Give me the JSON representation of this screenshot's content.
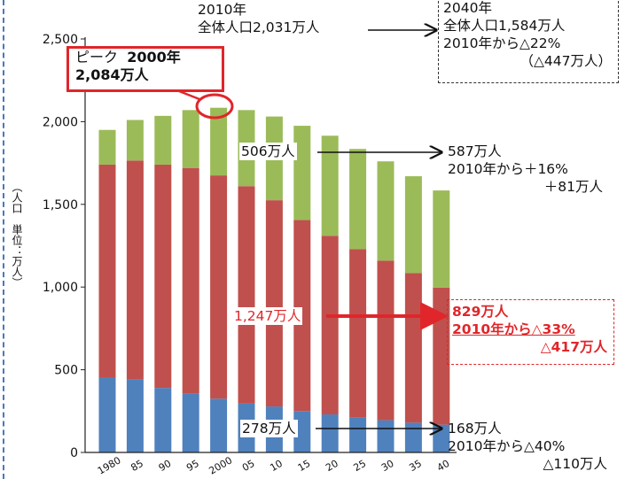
{
  "chart_data": {
    "type": "bar",
    "stacked": true,
    "categories": [
      "1980",
      "85",
      "90",
      "95",
      "2000",
      "05",
      "10",
      "15",
      "20",
      "25",
      "30",
      "35",
      "40"
    ],
    "series": [
      {
        "values": [
          455,
          440,
          390,
          355,
          325,
          295,
          278,
          250,
          230,
          210,
          195,
          180,
          168
        ],
        "color": "#4f81bd"
      },
      {
        "values": [
          1285,
          1325,
          1350,
          1365,
          1350,
          1315,
          1247,
          1155,
          1080,
          1020,
          965,
          905,
          829
        ],
        "color": "#c0504d"
      },
      {
        "values": [
          210,
          245,
          295,
          350,
          409,
          460,
          506,
          570,
          605,
          605,
          600,
          585,
          587
        ],
        "color": "#9bbb59"
      }
    ],
    "ylim": [
      0,
      2500
    ],
    "yticks": [
      "0",
      "500",
      "1,000",
      "1,500",
      "2,000",
      "2,500"
    ],
    "ylabel": "（人口　単位：万人）",
    "grid": false,
    "legend": "none"
  },
  "annotations": {
    "top_2010_line1": "2010年",
    "top_2010_line2": "全体人口2,031万人",
    "box2040_line1": "2040年",
    "box2040_line2": "全体人口1,584万人",
    "box2040_line3": "2010年から△22%",
    "box2040_line4": "（△447万人）",
    "peak_line1_a": "ピーク",
    "peak_line1_b": "2000年",
    "peak_line2": "2,084万人",
    "green_2010": "506万人",
    "green_2040_line1": "587万人",
    "green_2040_line2": "2010年から＋16%",
    "green_2040_line3": "＋81万人",
    "red_2010": "1,247万人",
    "red_2040_line1": "829万人",
    "red_2040_line2": "2010年から△33%",
    "red_2040_line3": "△417万人",
    "blue_2010": "278万人",
    "blue_2040_line1": "168万人",
    "blue_2040_line2": "2010年から△40%",
    "blue_2040_line3": "△110万人"
  }
}
